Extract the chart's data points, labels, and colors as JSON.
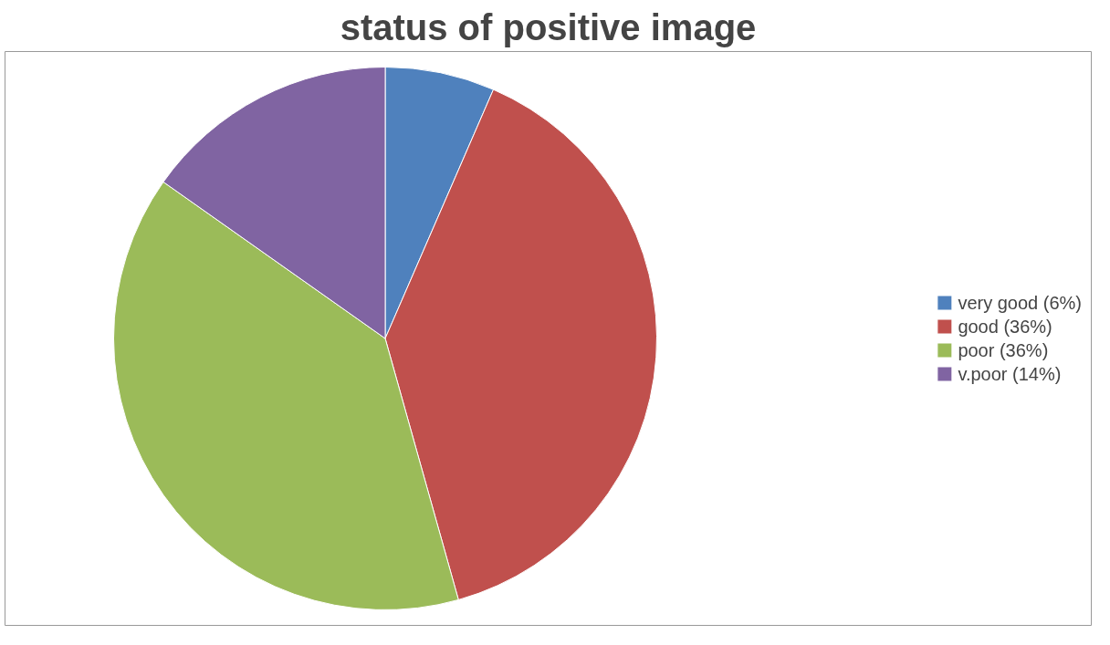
{
  "chart_data": {
    "type": "pie",
    "title": "status of positive image",
    "categories": [
      "very good (6%)",
      "good (36%)",
      "poor (36%)",
      "v.poor (14%)"
    ],
    "values": [
      6,
      36,
      36,
      14
    ],
    "colors": [
      "#4f81bd",
      "#c0504d",
      "#9bbb59",
      "#8064a2"
    ],
    "legend": "right"
  }
}
